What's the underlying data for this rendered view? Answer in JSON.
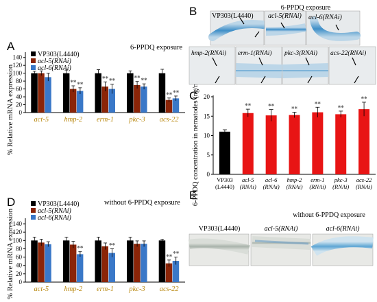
{
  "panel_letters": {
    "a": "A",
    "b": "B",
    "c": "C",
    "d": "D",
    "e": "E"
  },
  "ylabel_expr": "% Relative mRNA expression",
  "ylabel_conc": "6-PPDQ concentration in nematodes (ng/mg)",
  "sig": "**",
  "colors": {
    "vp303": "#000000",
    "acl5": "#8B2508",
    "acl6": "#3A78C8",
    "red_bar": "#E81414"
  },
  "panelB": {
    "title": "6-PPDQ exposure",
    "row1": [
      "VP303(L4440)",
      "acl-5(RNAi)",
      "acl-6(RNAi)"
    ],
    "row2": [
      "hmp-2(RNAi)",
      "erm-1(RNAi)",
      "pkc-3(RNAi)",
      "acs-22(RNAi)"
    ]
  },
  "panelE": {
    "title": "without 6-PPDQ exposure",
    "labels": [
      "VP303(L4440)",
      "acl-5(RNAi)",
      "acl-6(RNAi)"
    ]
  },
  "chart_data": [
    {
      "panel": "A",
      "type": "bar",
      "title": "6-PPDQ exposure",
      "ylabel": "% Relative mRNA expression",
      "ylim": [
        0,
        150
      ],
      "yticks": [
        0,
        20,
        40,
        60,
        80,
        100,
        120,
        140
      ],
      "legend_position": "top-left",
      "categories": [
        "act-5",
        "hmp-2",
        "erm-1",
        "pkc-3",
        "acs-22"
      ],
      "series": [
        {
          "name": "VP303(L4440)",
          "color": "#000000",
          "values": [
            100,
            100,
            100,
            100,
            100
          ],
          "errors": [
            5,
            8,
            9,
            6,
            10
          ],
          "significant": [
            false,
            false,
            false,
            false,
            false
          ]
        },
        {
          "name": "acl-5(RNAi)",
          "color": "#8B2508",
          "values": [
            100,
            60,
            66,
            70,
            32
          ],
          "errors": [
            6,
            8,
            12,
            9,
            5
          ],
          "significant": [
            false,
            true,
            true,
            true,
            true
          ]
        },
        {
          "name": "acl-6(RNAi)",
          "color": "#3A78C8",
          "values": [
            90,
            55,
            60,
            66,
            36
          ],
          "errors": [
            10,
            8,
            12,
            7,
            6
          ],
          "significant": [
            false,
            true,
            true,
            true,
            true
          ]
        }
      ]
    },
    {
      "panel": "C",
      "type": "bar",
      "ylabel": "6-PPDQ concentration in nematodes (ng/mg)",
      "ylim": [
        0,
        20
      ],
      "yticks": [
        0,
        5,
        10,
        15,
        20
      ],
      "categories": [
        "VP303\n(L4440)",
        "acl-5\n(RNAi)",
        "acl-6\n(RNAi)",
        "hmp-2\n(RNAi)",
        "erm-1\n(RNAi)",
        "pkc-3\n(RNAi)",
        "acs-22\n(RNAi)"
      ],
      "values": [
        11,
        15.8,
        15.2,
        15.3,
        16,
        15.5,
        16.8
      ],
      "errors": [
        0.5,
        1.0,
        1.5,
        0.7,
        1.3,
        0.8,
        1.8
      ],
      "colors": [
        "#000000",
        "#E81414",
        "#E81414",
        "#E81414",
        "#E81414",
        "#E81414",
        "#E81414"
      ],
      "significant": [
        false,
        true,
        true,
        true,
        true,
        true,
        true
      ]
    },
    {
      "panel": "D",
      "type": "bar",
      "title": "without 6-PPDQ exposure",
      "ylabel": "% Relative mRNA expression",
      "ylim": [
        0,
        150
      ],
      "yticks": [
        0,
        20,
        40,
        60,
        80,
        100,
        120,
        140
      ],
      "legend_position": "top-left",
      "categories": [
        "act-5",
        "hmp-2",
        "erm-1",
        "pkc-3",
        "acs-22"
      ],
      "series": [
        {
          "name": "VP303(L4440)",
          "color": "#000000",
          "values": [
            100,
            100,
            100,
            100,
            100
          ],
          "errors": [
            8,
            8,
            8,
            8,
            3
          ],
          "significant": [
            false,
            false,
            false,
            false,
            false
          ]
        },
        {
          "name": "acl-5(RNAi)",
          "color": "#8B2508",
          "values": [
            95,
            90,
            86,
            92,
            45
          ],
          "errors": [
            8,
            8,
            8,
            7,
            8
          ],
          "significant": [
            false,
            false,
            false,
            false,
            true
          ]
        },
        {
          "name": "acl-6(RNAi)",
          "color": "#3A78C8",
          "values": [
            91,
            67,
            70,
            92,
            51
          ],
          "errors": [
            6,
            6,
            10,
            7,
            9
          ],
          "significant": [
            false,
            true,
            true,
            false,
            true
          ]
        }
      ]
    }
  ]
}
